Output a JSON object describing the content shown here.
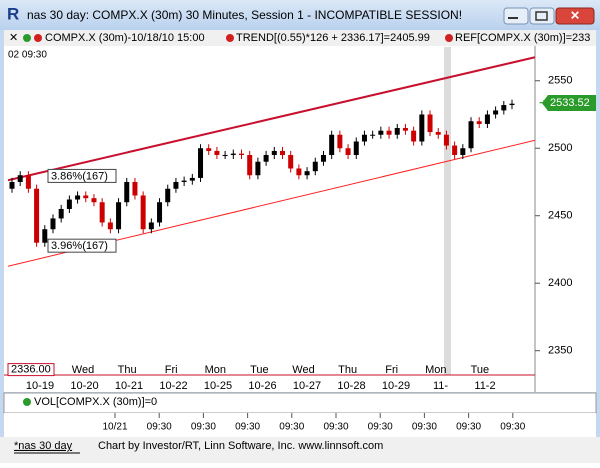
{
  "window": {
    "title": "nas 30 day: COMPX.X (30m) 30 Minutes, Session 1 - INCOMPATIBLE SESSION!"
  },
  "info_bar": {
    "symbol": "COMPX.X (30m)-10/18/10 15:00",
    "trend": "TREND[(0.55)*126 + 2336.17]=2405.99",
    "ref": "REF[COMPX.X (30m)]=233",
    "corner": "02  09:30"
  },
  "chart_data": {
    "type": "candlestick",
    "open": [
      2470,
      2475,
      2480,
      2470,
      2430,
      2440,
      2448,
      2455,
      2462,
      2465,
      2463,
      2460,
      2445,
      2440,
      2460,
      2475,
      2465,
      2440,
      2445,
      2460,
      2470,
      2475,
      2476,
      2478,
      2500,
      2498,
      2495,
      2495,
      2496,
      2495,
      2480,
      2490,
      2495,
      2498,
      2495,
      2485,
      2480,
      2483,
      2490,
      2495,
      2510,
      2500,
      2495,
      2505,
      2510,
      2510,
      2513,
      2510,
      2515,
      2513,
      2505,
      2525,
      2512,
      2510,
      2502,
      2495,
      2500,
      2520,
      2518,
      2525,
      2528,
      2532
    ],
    "high": [
      2478,
      2483,
      2483,
      2473,
      2443,
      2451,
      2458,
      2465,
      2468,
      2468,
      2466,
      2463,
      2448,
      2463,
      2478,
      2478,
      2468,
      2448,
      2463,
      2473,
      2478,
      2479,
      2481,
      2503,
      2503,
      2501,
      2498,
      2499,
      2499,
      2498,
      2493,
      2498,
      2501,
      2501,
      2498,
      2488,
      2486,
      2493,
      2498,
      2513,
      2513,
      2503,
      2508,
      2513,
      2513,
      2516,
      2516,
      2518,
      2518,
      2516,
      2528,
      2528,
      2515,
      2513,
      2505,
      2503,
      2523,
      2523,
      2528,
      2531,
      2535,
      2536
    ],
    "low": [
      2467,
      2472,
      2467,
      2427,
      2427,
      2437,
      2445,
      2452,
      2459,
      2460,
      2457,
      2442,
      2437,
      2437,
      2457,
      2462,
      2437,
      2437,
      2442,
      2457,
      2467,
      2472,
      2473,
      2475,
      2495,
      2492,
      2492,
      2492,
      2492,
      2477,
      2477,
      2487,
      2492,
      2492,
      2482,
      2477,
      2477,
      2480,
      2487,
      2492,
      2497,
      2492,
      2492,
      2502,
      2507,
      2507,
      2507,
      2507,
      2510,
      2502,
      2502,
      2509,
      2507,
      2499,
      2492,
      2492,
      2497,
      2515,
      2515,
      2522,
      2525,
      2529
    ],
    "close": [
      2475,
      2480,
      2470,
      2430,
      2440,
      2448,
      2455,
      2462,
      2465,
      2463,
      2460,
      2445,
      2440,
      2460,
      2475,
      2465,
      2440,
      2445,
      2460,
      2470,
      2475,
      2476,
      2478,
      2500,
      2498,
      2495,
      2495,
      2496,
      2495,
      2480,
      2490,
      2495,
      2498,
      2495,
      2485,
      2480,
      2483,
      2490,
      2495,
      2510,
      2500,
      2495,
      2505,
      2510,
      2510,
      2513,
      2510,
      2515,
      2513,
      2505,
      2525,
      2512,
      2510,
      2502,
      2495,
      2500,
      2520,
      2518,
      2525,
      2528,
      2532,
      2533
    ],
    "up_color": "#000000",
    "down_color": "#cc0000",
    "ylim": [
      2332,
      2575
    ],
    "yticks": [
      2350,
      2400,
      2450,
      2500,
      2550
    ],
    "last_price": 2533.52,
    "base_label": {
      "value": 2336,
      "label": "2336.00"
    },
    "trend_lines": [
      {
        "color": "#c8102e",
        "values": [
          2476.3,
          2567.4
        ],
        "label": "3.86%(167)"
      },
      {
        "color": "#ff2020",
        "values": [
          2412.6,
          2505.9
        ],
        "label": "3.96%(167)"
      }
    ],
    "days": [
      "Wed",
      "Thu",
      "Fri",
      "Mon",
      "Tue",
      "Wed",
      "Thu",
      "Fri",
      "Mon",
      "Tue"
    ],
    "dates": [
      "10-19",
      "10-20",
      "10-21",
      "10-22",
      "10-25",
      "10-26",
      "10-27",
      "10-28",
      "10-29",
      "11-",
      "11-2"
    ],
    "volume_label": "VOL[COMPX.X (30m)]=0",
    "time_axis": [
      "10/21",
      "09:30",
      "09:30",
      "09:30",
      "09:30",
      "09:30",
      "09:30",
      "09:30",
      "09:30",
      "09:30"
    ]
  },
  "footer": {
    "tab": "*nas 30 day",
    "credit": "Chart by Investor/RT, Linn Software, Inc. www.linnsoft.com"
  }
}
